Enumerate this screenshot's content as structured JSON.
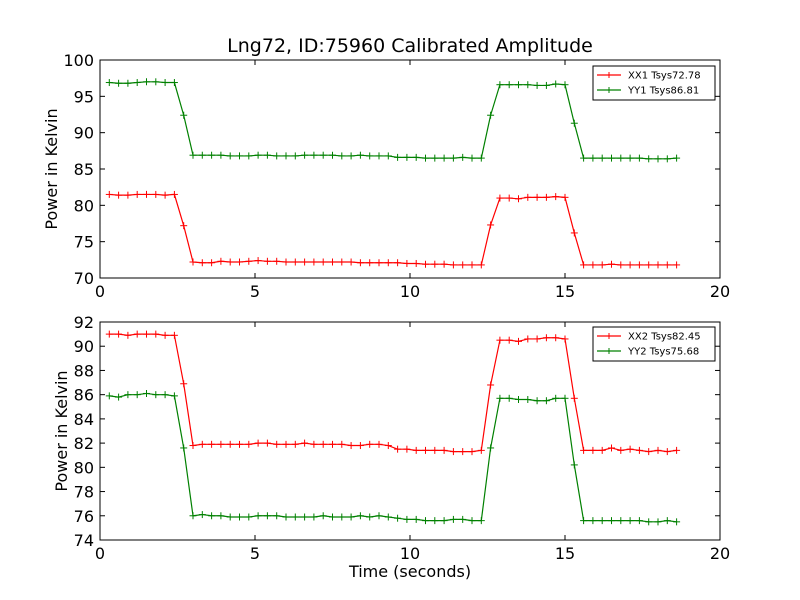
{
  "chart_data": [
    {
      "type": "line",
      "title": "Lng72, ID:75960 Calibrated Amplitude",
      "xlabel": "",
      "ylabel": "Power in Kelvin",
      "xlim": [
        0,
        20
      ],
      "ylim": [
        70,
        100
      ],
      "xticks": [
        "0",
        "5",
        "10",
        "15",
        "20"
      ],
      "yticks": [
        "70",
        "75",
        "80",
        "85",
        "90",
        "95",
        "100"
      ],
      "legend_position": "top-right",
      "x": [
        0.3,
        0.6,
        0.9,
        1.2,
        1.5,
        1.8,
        2.1,
        2.4,
        2.7,
        3.0,
        3.3,
        3.6,
        3.9,
        4.2,
        4.5,
        4.8,
        5.1,
        5.4,
        5.7,
        6.0,
        6.3,
        6.6,
        6.9,
        7.2,
        7.5,
        7.8,
        8.1,
        8.4,
        8.7,
        9.0,
        9.3,
        9.6,
        9.9,
        10.2,
        10.5,
        10.8,
        11.1,
        11.4,
        11.7,
        12.0,
        12.3,
        12.6,
        12.9,
        13.2,
        13.5,
        13.8,
        14.1,
        14.4,
        14.7,
        15.0,
        15.3,
        15.6,
        15.9,
        16.2,
        16.5,
        16.8,
        17.1,
        17.4,
        17.7,
        18.0,
        18.3,
        18.6
      ],
      "series": [
        {
          "name": "XX1 Tsys72.78",
          "color": "#ff0000",
          "values": [
            81.5,
            81.4,
            81.4,
            81.5,
            81.5,
            81.5,
            81.4,
            81.5,
            77.2,
            72.2,
            72.1,
            72.1,
            72.3,
            72.2,
            72.2,
            72.3,
            72.4,
            72.3,
            72.3,
            72.2,
            72.2,
            72.2,
            72.2,
            72.2,
            72.2,
            72.2,
            72.2,
            72.1,
            72.1,
            72.1,
            72.1,
            72.1,
            72.0,
            72.0,
            71.9,
            71.9,
            71.9,
            71.8,
            71.8,
            71.8,
            71.8,
            77.3,
            81.0,
            81.0,
            80.9,
            81.1,
            81.1,
            81.1,
            81.2,
            81.1,
            76.2,
            71.8,
            71.8,
            71.8,
            71.9,
            71.8,
            71.8,
            71.8,
            71.8,
            71.8,
            71.8,
            71.8
          ]
        },
        {
          "name": "YY1 Tsys86.81",
          "color": "#008000",
          "values": [
            96.9,
            96.8,
            96.8,
            96.9,
            97.0,
            97.0,
            96.9,
            96.9,
            92.4,
            86.9,
            86.9,
            86.9,
            86.9,
            86.8,
            86.8,
            86.8,
            86.9,
            86.9,
            86.8,
            86.8,
            86.8,
            86.9,
            86.9,
            86.9,
            86.9,
            86.8,
            86.8,
            86.9,
            86.8,
            86.8,
            86.8,
            86.6,
            86.6,
            86.6,
            86.5,
            86.5,
            86.5,
            86.5,
            86.6,
            86.5,
            86.5,
            92.4,
            96.6,
            96.6,
            96.6,
            96.6,
            96.5,
            96.5,
            96.7,
            96.6,
            91.3,
            86.5,
            86.5,
            86.5,
            86.5,
            86.5,
            86.5,
            86.5,
            86.4,
            86.4,
            86.4,
            86.5
          ]
        }
      ]
    },
    {
      "type": "line",
      "title": "",
      "xlabel": "Time (seconds)",
      "ylabel": "Power in Kelvin",
      "xlim": [
        0,
        20
      ],
      "ylim": [
        74,
        92
      ],
      "xticks": [
        "0",
        "5",
        "10",
        "15",
        "20"
      ],
      "yticks": [
        "74",
        "76",
        "78",
        "80",
        "82",
        "84",
        "86",
        "88",
        "90",
        "92"
      ],
      "legend_position": "top-right",
      "x": [
        0.3,
        0.6,
        0.9,
        1.2,
        1.5,
        1.8,
        2.1,
        2.4,
        2.7,
        3.0,
        3.3,
        3.6,
        3.9,
        4.2,
        4.5,
        4.8,
        5.1,
        5.4,
        5.7,
        6.0,
        6.3,
        6.6,
        6.9,
        7.2,
        7.5,
        7.8,
        8.1,
        8.4,
        8.7,
        9.0,
        9.3,
        9.6,
        9.9,
        10.2,
        10.5,
        10.8,
        11.1,
        11.4,
        11.7,
        12.0,
        12.3,
        12.6,
        12.9,
        13.2,
        13.5,
        13.8,
        14.1,
        14.4,
        14.7,
        15.0,
        15.3,
        15.6,
        15.9,
        16.2,
        16.5,
        16.8,
        17.1,
        17.4,
        17.7,
        18.0,
        18.3,
        18.6
      ],
      "series": [
        {
          "name": "XX2 Tsys82.45",
          "color": "#ff0000",
          "values": [
            91.0,
            91.0,
            90.9,
            91.0,
            91.0,
            91.0,
            90.9,
            90.9,
            86.9,
            81.8,
            81.9,
            81.9,
            81.9,
            81.9,
            81.9,
            81.9,
            82.0,
            82.0,
            81.9,
            81.9,
            81.9,
            82.0,
            81.9,
            81.9,
            81.9,
            81.9,
            81.8,
            81.8,
            81.9,
            81.9,
            81.8,
            81.5,
            81.5,
            81.4,
            81.4,
            81.4,
            81.4,
            81.3,
            81.3,
            81.3,
            81.4,
            86.8,
            90.5,
            90.5,
            90.4,
            90.6,
            90.6,
            90.7,
            90.7,
            90.6,
            85.7,
            81.4,
            81.4,
            81.4,
            81.6,
            81.4,
            81.5,
            81.4,
            81.3,
            81.4,
            81.3,
            81.4
          ]
        },
        {
          "name": "YY2 Tsys75.68",
          "color": "#008000",
          "values": [
            85.9,
            85.8,
            86.0,
            86.0,
            86.1,
            86.0,
            86.0,
            85.9,
            81.6,
            76.0,
            76.1,
            76.0,
            76.0,
            75.9,
            75.9,
            75.9,
            76.0,
            76.0,
            76.0,
            75.9,
            75.9,
            75.9,
            75.9,
            76.0,
            75.9,
            75.9,
            75.9,
            76.0,
            75.9,
            76.0,
            75.9,
            75.8,
            75.7,
            75.7,
            75.6,
            75.6,
            75.6,
            75.7,
            75.7,
            75.6,
            75.6,
            81.6,
            85.7,
            85.7,
            85.6,
            85.6,
            85.5,
            85.5,
            85.7,
            85.7,
            80.2,
            75.6,
            75.6,
            75.6,
            75.6,
            75.6,
            75.6,
            75.6,
            75.5,
            75.5,
            75.6,
            75.5
          ]
        }
      ]
    }
  ]
}
